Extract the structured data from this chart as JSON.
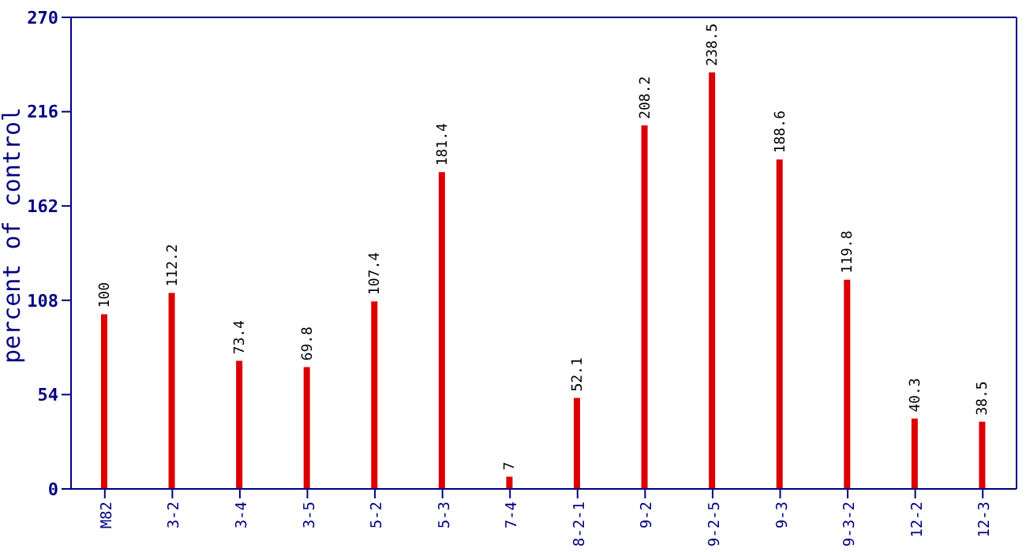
{
  "chart_data": {
    "type": "bar",
    "ylabel": "percent of control",
    "categories": [
      "M82",
      "3-2",
      "3-4",
      "3-5",
      "5-2",
      "5-3",
      "7-4",
      "8-2-1",
      "9-2",
      "9-2-5",
      "9-3",
      "9-3-2",
      "12-2",
      "12-3"
    ],
    "values": [
      100,
      112.2,
      73.4,
      69.8,
      107.4,
      181.4,
      7,
      52.1,
      208.2,
      238.5,
      188.6,
      119.8,
      40.3,
      38.5
    ],
    "color": "#dd0000",
    "ylim": [
      0,
      270
    ],
    "yticks": [
      0,
      54,
      108,
      162,
      216,
      270
    ],
    "data_labels": true,
    "grid": false
  }
}
